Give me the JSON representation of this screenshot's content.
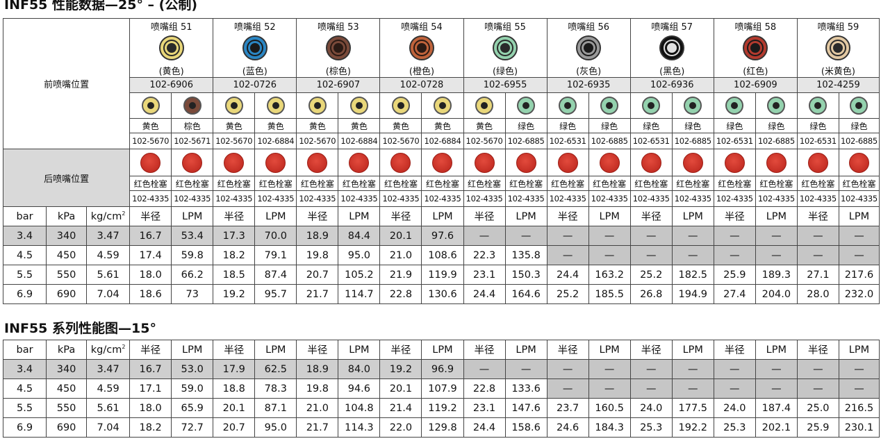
{
  "title1": "INF55 性能数据—25° – (公制)",
  "title2": "INF55 系列性能图—15°",
  "front_label": "前喷嘴位置",
  "rear_label": "后喷嘴位置",
  "nozzle_groups": [
    {
      "name": "喷嘴组 51",
      "color": "(黄色)",
      "hex": "#e9d77a",
      "inner": "#2a2a2a",
      "part": "102-6906",
      "fronts": [
        {
          "name": "黄色",
          "hex": "#e9d77a",
          "pn": "102-5670"
        },
        {
          "name": "棕色",
          "hex": "#7a4a3a",
          "pn": "102-5671"
        }
      ]
    },
    {
      "name": "喷嘴组 52",
      "color": "(蓝色)",
      "hex": "#2a86c4",
      "inner": "#1a1a1a",
      "part": "102-0726",
      "fronts": [
        {
          "name": "黄色",
          "hex": "#e9d77a",
          "pn": "102-5670"
        },
        {
          "name": "黄色",
          "hex": "#e9d77a",
          "pn": "102-6884"
        }
      ]
    },
    {
      "name": "喷嘴组 53",
      "color": "(棕色)",
      "hex": "#7a4a3a",
      "inner": "#2a1a14",
      "part": "102-6907",
      "fronts": [
        {
          "name": "黄色",
          "hex": "#e9d77a",
          "pn": "102-5670"
        },
        {
          "name": "黄色",
          "hex": "#e9d77a",
          "pn": "102-6884"
        }
      ]
    },
    {
      "name": "喷嘴组 54",
      "color": "(橙色)",
      "hex": "#c0633b",
      "inner": "#2a1a14",
      "part": "102-0728",
      "fronts": [
        {
          "name": "黄色",
          "hex": "#e9d77a",
          "pn": "102-5670"
        },
        {
          "name": "黄色",
          "hex": "#e9d77a",
          "pn": "102-6884"
        }
      ]
    },
    {
      "name": "喷嘴组 55",
      "color": "(绿色)",
      "hex": "#94d2ae",
      "inner": "#2a2a2a",
      "part": "102-6955",
      "fronts": [
        {
          "name": "黄色",
          "hex": "#e9d77a",
          "pn": "102-5670"
        },
        {
          "name": "绿色",
          "hex": "#94d2ae",
          "pn": "102-6885"
        }
      ]
    },
    {
      "name": "喷嘴组 56",
      "color": "(灰色)",
      "hex": "#9a9a9a",
      "inner": "#1a1a1a",
      "part": "102-6935",
      "fronts": [
        {
          "name": "绿色",
          "hex": "#94d2ae",
          "pn": "102-6531"
        },
        {
          "name": "绿色",
          "hex": "#94d2ae",
          "pn": "102-6885"
        }
      ]
    },
    {
      "name": "喷嘴组 57",
      "color": "(黑色)",
      "hex": "#111111",
      "inner": "#e0e0e0",
      "part": "102-6936",
      "fronts": [
        {
          "name": "绿色",
          "hex": "#94d2ae",
          "pn": "102-6531"
        },
        {
          "name": "绿色",
          "hex": "#94d2ae",
          "pn": "102-6885"
        }
      ]
    },
    {
      "name": "喷嘴组 58",
      "color": "(红色)",
      "hex": "#b33a2e",
      "inner": "#1a1a1a",
      "part": "102-6909",
      "fronts": [
        {
          "name": "绿色",
          "hex": "#94d2ae",
          "pn": "102-6531"
        },
        {
          "name": "绿色",
          "hex": "#94d2ae",
          "pn": "102-6885"
        }
      ]
    },
    {
      "name": "喷嘴组 59",
      "color": "(米黄色)",
      "hex": "#e3c9a3",
      "inner": "#2a2a2a",
      "part": "102-4259",
      "fronts": [
        {
          "name": "绿色",
          "hex": "#94d2ae",
          "pn": "102-6531"
        },
        {
          "name": "绿色",
          "hex": "#94d2ae",
          "pn": "102-6885"
        }
      ]
    }
  ],
  "rear": {
    "name": "红色栓塞",
    "pn": "102-4335"
  },
  "header": [
    "bar",
    "kPa",
    "kg/cm",
    "半径",
    "LPM"
  ],
  "header_sup": "2",
  "dash": "—",
  "table1": [
    [
      "3.4",
      "340",
      "3.47",
      "16.7",
      "53.4",
      "17.3",
      "70.0",
      "18.9",
      "84.4",
      "20.1",
      "97.6",
      "—",
      "—",
      "—",
      "—",
      "—",
      "—",
      "—",
      "—",
      "—",
      "—"
    ],
    [
      "4.5",
      "450",
      "4.59",
      "17.4",
      "59.8",
      "18.2",
      "79.1",
      "19.8",
      "95.0",
      "21.0",
      "108.6",
      "22.3",
      "135.8",
      "—",
      "—",
      "—",
      "—",
      "—",
      "—",
      "—",
      "—"
    ],
    [
      "5.5",
      "550",
      "5.61",
      "18.0",
      "66.2",
      "18.5",
      "87.4",
      "20.7",
      "105.2",
      "21.9",
      "119.9",
      "23.1",
      "150.3",
      "24.4",
      "163.2",
      "25.2",
      "182.5",
      "25.9",
      "189.3",
      "27.1",
      "217.6"
    ],
    [
      "6.9",
      "690",
      "7.04",
      "18.6",
      "73",
      "19.2",
      "95.7",
      "21.7",
      "114.7",
      "22.8",
      "130.6",
      "24.4",
      "164.6",
      "25.2",
      "185.5",
      "26.8",
      "194.9",
      "27.4",
      "204.0",
      "28.0",
      "232.0"
    ]
  ],
  "table2": [
    [
      "3.4",
      "340",
      "3.47",
      "16.7",
      "53.0",
      "17.9",
      "62.5",
      "18.9",
      "84.0",
      "19.2",
      "96.9",
      "—",
      "—",
      "—",
      "—",
      "—",
      "—",
      "—",
      "—",
      "—",
      "—"
    ],
    [
      "4.5",
      "450",
      "4.59",
      "17.1",
      "59.0",
      "18.8",
      "78.3",
      "19.8",
      "94.6",
      "20.1",
      "107.9",
      "22.8",
      "133.6",
      "—",
      "—",
      "—",
      "—",
      "—",
      "—",
      "—",
      "—"
    ],
    [
      "5.5",
      "550",
      "5.61",
      "18.0",
      "65.9",
      "20.1",
      "87.1",
      "21.0",
      "104.8",
      "21.4",
      "119.2",
      "23.1",
      "147.6",
      "23.7",
      "160.5",
      "24.0",
      "177.5",
      "24.0",
      "187.4",
      "25.0",
      "216.5"
    ],
    [
      "6.9",
      "690",
      "7.04",
      "18.2",
      "72.7",
      "20.7",
      "95.0",
      "21.7",
      "114.3",
      "22.0",
      "129.8",
      "24.4",
      "158.6",
      "24.6",
      "184.3",
      "25.3",
      "192.2",
      "25.3",
      "202.1",
      "25.9",
      "230.1"
    ]
  ]
}
